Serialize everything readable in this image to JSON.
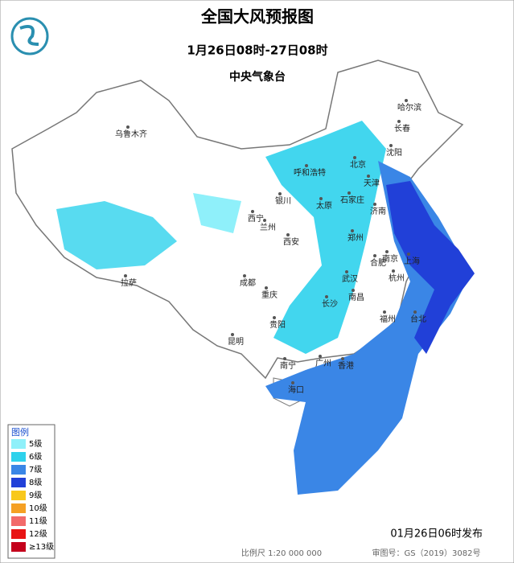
{
  "header": {
    "title": "全国大风预报图",
    "period": "1月26日08时-27日08时",
    "issuer": "中央气象台"
  },
  "legend": {
    "title": "图例",
    "items": [
      {
        "label": "5级",
        "color": "#8ff0fa"
      },
      {
        "label": "6级",
        "color": "#2ed2ec"
      },
      {
        "label": "7级",
        "color": "#3a86e6"
      },
      {
        "label": "8级",
        "color": "#2140d8"
      },
      {
        "label": "9级",
        "color": "#f8c81c"
      },
      {
        "label": "10级",
        "color": "#f5a023"
      },
      {
        "label": "11级",
        "color": "#f26a6a"
      },
      {
        "label": "12级",
        "color": "#e81414"
      },
      {
        "label": "≥13级",
        "color": "#c4001c"
      }
    ]
  },
  "cities": [
    "乌鲁木齐",
    "哈尔滨",
    "长春",
    "沈阳",
    "北京",
    "天津",
    "呼和浩特",
    "石家庄",
    "太原",
    "济南",
    "银川",
    "西宁",
    "兰州",
    "西安",
    "郑州",
    "合肥",
    "南京",
    "上海",
    "拉萨",
    "成都",
    "武汉",
    "杭州",
    "重庆",
    "长沙",
    "南昌",
    "贵阳",
    "福州",
    "台北",
    "昆明",
    "南宁",
    "广州",
    "香港",
    "海口"
  ],
  "footer": {
    "release": "01月26日06时发布",
    "scale": "比例尺 1:20 000 000",
    "review": "审图号：GS（2019）3082号"
  }
}
